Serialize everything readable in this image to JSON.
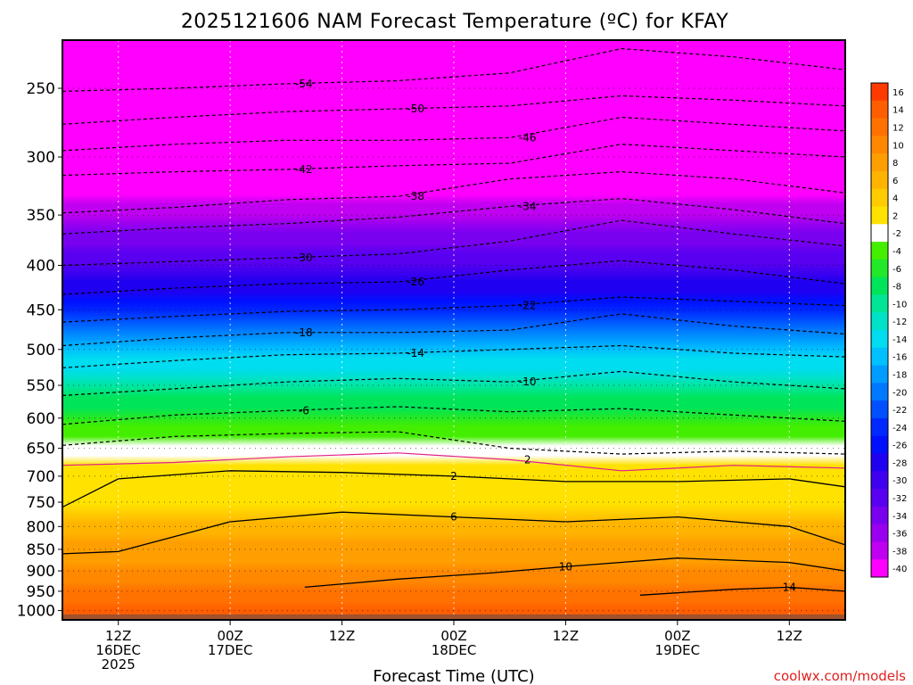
{
  "chart_data": {
    "type": "heatmap",
    "title": "2025121606 NAM Forecast Temperature (ºC) for KFAY",
    "xlabel": "Forecast Time (UTC)",
    "credit": "coolwx.com/models",
    "x_ticks": [
      {
        "lines": [
          "12Z",
          "16DEC",
          "2025"
        ],
        "hour": 0
      },
      {
        "lines": [
          "00Z",
          "17DEC"
        ],
        "hour": 12
      },
      {
        "lines": [
          "12Z"
        ],
        "hour": 24
      },
      {
        "lines": [
          "00Z",
          "18DEC"
        ],
        "hour": 36
      },
      {
        "lines": [
          "12Z"
        ],
        "hour": 48
      },
      {
        "lines": [
          "00Z",
          "19DEC"
        ],
        "hour": 60
      },
      {
        "lines": [
          "12Z"
        ],
        "hour": 72
      }
    ],
    "xlim": [
      -6,
      78
    ],
    "y_ticks": [
      250,
      300,
      350,
      400,
      450,
      500,
      550,
      600,
      650,
      700,
      750,
      800,
      850,
      900,
      950,
      1000
    ],
    "ylim_hpa": [
      1025,
      220
    ],
    "ground_pressure_hpa": 1010,
    "grid": true,
    "legend": "colorbar right",
    "colorbar_levels": [
      16,
      14,
      12,
      10,
      8,
      6,
      4,
      2,
      -2,
      -4,
      -6,
      -8,
      -10,
      -12,
      -14,
      -16,
      -18,
      -20,
      -22,
      -24,
      -26,
      -28,
      -30,
      -32,
      -34,
      -36,
      -38,
      -40
    ],
    "colorbar_colors": [
      "#ff3a00",
      "#ff5e00",
      "#ff7200",
      "#ff8800",
      "#ff9e00",
      "#ffb400",
      "#ffcc00",
      "#ffe200",
      "#ffffff",
      "#44ee00",
      "#22e82a",
      "#00e45a",
      "#00e696",
      "#00e2c8",
      "#00dcf0",
      "#00c0ff",
      "#009cff",
      "#0078ff",
      "#0050ff",
      "#0028ff",
      "#0010ff",
      "#2000f0",
      "#4000f0",
      "#5a00f0",
      "#7a00f0",
      "#9a00f0",
      "#c000f0",
      "#ff00ff"
    ],
    "isotherm_profile_times": [
      -6,
      6,
      18,
      30,
      42,
      54,
      66,
      78
    ],
    "isotherm_profiles": [
      {
        "level": -54,
        "pressure_hpa": [
          252,
          250,
          247,
          245,
          240,
          225,
          230,
          238
        ],
        "labeled": true
      },
      {
        "level": -50,
        "pressure_hpa": [
          275,
          270,
          266,
          264,
          262,
          255,
          258,
          262
        ],
        "labeled": true
      },
      {
        "level": -46,
        "pressure_hpa": [
          295,
          290,
          287,
          287,
          285,
          270,
          275,
          280
        ],
        "labeled": true
      },
      {
        "level": -42,
        "pressure_hpa": [
          315,
          312,
          310,
          307,
          305,
          290,
          295,
          300
        ],
        "labeled": true
      },
      {
        "level": -38,
        "pressure_hpa": [
          348,
          343,
          336,
          333,
          318,
          312,
          318,
          330
        ],
        "labeled": true
      },
      {
        "level": -34,
        "pressure_hpa": [
          368,
          362,
          358,
          352,
          342,
          335,
          345,
          358
        ],
        "labeled": true
      },
      {
        "level": -30,
        "pressure_hpa": [
          400,
          396,
          392,
          388,
          375,
          355,
          368,
          380
        ],
        "labeled": true
      },
      {
        "level": -26,
        "pressure_hpa": [
          432,
          425,
          420,
          418,
          405,
          395,
          405,
          420
        ],
        "labeled": true
      },
      {
        "level": -22,
        "pressure_hpa": [
          465,
          458,
          452,
          450,
          445,
          435,
          440,
          445
        ],
        "labeled": true
      },
      {
        "level": -18,
        "pressure_hpa": [
          495,
          485,
          478,
          478,
          475,
          455,
          470,
          480
        ],
        "labeled": true
      },
      {
        "level": -14,
        "pressure_hpa": [
          525,
          515,
          507,
          505,
          500,
          495,
          505,
          510
        ],
        "labeled": true
      },
      {
        "level": -10,
        "pressure_hpa": [
          565,
          555,
          545,
          540,
          545,
          530,
          545,
          555
        ],
        "labeled": true
      },
      {
        "level": -6,
        "pressure_hpa": [
          610,
          595,
          588,
          582,
          590,
          585,
          595,
          605
        ],
        "labeled": true
      },
      {
        "level": -2,
        "pressure_hpa": [
          645,
          630,
          625,
          622,
          650,
          660,
          655,
          660
        ],
        "labeled": false
      },
      {
        "level": 2,
        "pressure_hpa": [
          680,
          675,
          665,
          658,
          670,
          690,
          680,
          685
        ],
        "labeled": true
      }
    ],
    "warm_isotherms": [
      {
        "level": 2,
        "time_hours": [
          -6,
          0,
          12,
          24,
          36,
          48,
          60,
          72,
          78
        ],
        "pressure_hpa": [
          760,
          705,
          690,
          693,
          700,
          710,
          710,
          705,
          720
        ],
        "labeled": true
      },
      {
        "level": 6,
        "time_hours": [
          -6,
          0,
          12,
          24,
          36,
          48,
          60,
          72,
          78
        ],
        "pressure_hpa": [
          860,
          855,
          790,
          770,
          780,
          790,
          780,
          800,
          840
        ],
        "labeled": true
      },
      {
        "level": 10,
        "time_hours": [
          20,
          30,
          40,
          48,
          60,
          72,
          78
        ],
        "pressure_hpa": [
          940,
          920,
          905,
          890,
          870,
          880,
          900
        ],
        "labeled": true
      },
      {
        "level": 14,
        "time_hours": [
          56,
          66,
          72,
          78
        ],
        "pressure_hpa": [
          960,
          945,
          940,
          950
        ],
        "labeled": true
      }
    ]
  }
}
